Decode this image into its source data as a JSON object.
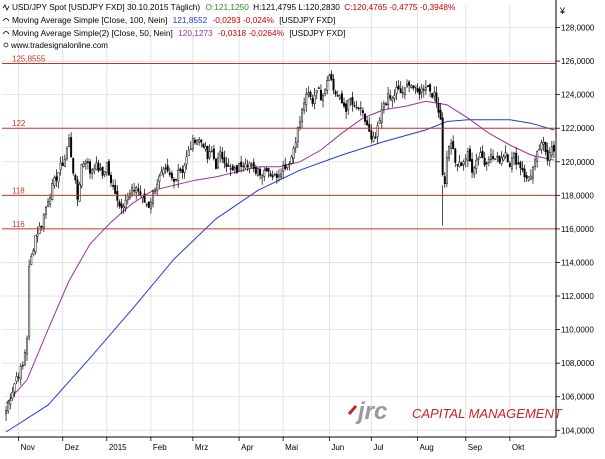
{
  "header": {
    "line1": {
      "main": "USD/JPY Spot [USDJPY FXD]  30.10.2015  Täglich)",
      "o": "O:121,1250",
      "hl": "H:121,4795  L:120,2830",
      "c": "C:120,4765 -0,4775 -0,3948%"
    },
    "line2": {
      "main": "Moving Average Simple [Close, 100, Nein]",
      "value": "121,8552",
      "change": "-0,0293 -0,024%",
      "tail": "[USDJPY FXD]"
    },
    "line3": {
      "main": "Moving Average Simple(2) [Close, 50, Nein]",
      "value": "120,1273",
      "change": "-0,0318 -0,0264%",
      "tail": "[USDJPY FXD]"
    },
    "website": "www.tradesignalonline.com"
  },
  "currency_symbol": "¥",
  "watermark": {
    "logo": "jrc",
    "tagline": "CAPITAL MANAGEMENT"
  },
  "colors": {
    "background": "#ffffff",
    "grid": "#dddddd",
    "axis": "#000000",
    "candle": "#000000",
    "candle_up_fill": "#ffffff",
    "resistance_line": "#c0392b",
    "resistance_label": "#c0392b",
    "ma100": "#1f3fd6",
    "ma50": "#9b2fa0",
    "open_text": "#2e8b2e",
    "change_text": "#d00000",
    "watermark_logo": "#9a9a9a",
    "watermark_accent": "#cc2222",
    "watermark_text": "#cc2222"
  },
  "chart_data": {
    "type": "candlestick",
    "title": "USD/JPY Spot [USDJPY FXD] 30.10.2015 Täglich",
    "ylim": [
      103.6,
      129.4
    ],
    "y_ticks": [
      "104,0000",
      "106,0000",
      "108,0000",
      "110,0000",
      "112,0000",
      "114,0000",
      "116,0000",
      "118,0000",
      "120,0000",
      "122,0000",
      "124,0000",
      "126,0000",
      "128,0000"
    ],
    "x_ticks": [
      {
        "label": "Nov",
        "index": 6
      },
      {
        "label": "Dez",
        "index": 27
      },
      {
        "label": "2015",
        "index": 48
      },
      {
        "label": "Feb",
        "index": 69
      },
      {
        "label": "Mrz",
        "index": 89
      },
      {
        "label": "Apr",
        "index": 111
      },
      {
        "label": "Mai",
        "index": 132
      },
      {
        "label": "Jun",
        "index": 154
      },
      {
        "label": "Jul",
        "index": 174
      },
      {
        "label": "Aug",
        "index": 196
      },
      {
        "label": "Sep",
        "index": 219
      },
      {
        "label": "Okt",
        "index": 240
      }
    ],
    "n_bars": 262,
    "anchors": [
      [
        0,
        105.2
      ],
      [
        3,
        106.4
      ],
      [
        5,
        107.2
      ],
      [
        8,
        107.8
      ],
      [
        10,
        109.6
      ],
      [
        11,
        113.6
      ],
      [
        14,
        115.6
      ],
      [
        17,
        116.3
      ],
      [
        20,
        117.8
      ],
      [
        23,
        118.8
      ],
      [
        25,
        119.4
      ],
      [
        28,
        120.2
      ],
      [
        30,
        121.3
      ],
      [
        32,
        119.5
      ],
      [
        34,
        117.8
      ],
      [
        36,
        119.8
      ],
      [
        38,
        120.2
      ],
      [
        40,
        119.4
      ],
      [
        42,
        119.8
      ],
      [
        44,
        119.6
      ],
      [
        46,
        119.2
      ],
      [
        48,
        119.9
      ],
      [
        50,
        118.6
      ],
      [
        52,
        118.3
      ],
      [
        54,
        117.4
      ],
      [
        56,
        117.6
      ],
      [
        58,
        117.9
      ],
      [
        60,
        118.2
      ],
      [
        62,
        118.5
      ],
      [
        64,
        118.0
      ],
      [
        66,
        117.6
      ],
      [
        68,
        117.4
      ],
      [
        70,
        118.1
      ],
      [
        72,
        118.8
      ],
      [
        74,
        119.2
      ],
      [
        76,
        119.4
      ],
      [
        78,
        119.1
      ],
      [
        80,
        118.8
      ],
      [
        82,
        119.6
      ],
      [
        84,
        119.5
      ],
      [
        86,
        120.2
      ],
      [
        88,
        120.9
      ],
      [
        90,
        121.4
      ],
      [
        92,
        121.3
      ],
      [
        94,
        121.1
      ],
      [
        96,
        120.2
      ],
      [
        98,
        120.6
      ],
      [
        100,
        119.8
      ],
      [
        102,
        120.4
      ],
      [
        104,
        120.2
      ],
      [
        106,
        119.6
      ],
      [
        108,
        119.4
      ],
      [
        110,
        119.5
      ],
      [
        112,
        119.9
      ],
      [
        114,
        120.1
      ],
      [
        116,
        119.9
      ],
      [
        118,
        119.4
      ],
      [
        120,
        119.6
      ],
      [
        122,
        119.3
      ],
      [
        124,
        119.7
      ],
      [
        126,
        119.3
      ],
      [
        128,
        119.1
      ],
      [
        130,
        119.4
      ],
      [
        132,
        119.7
      ],
      [
        134,
        119.9
      ],
      [
        136,
        120.3
      ],
      [
        138,
        121.4
      ],
      [
        140,
        122.4
      ],
      [
        142,
        123.6
      ],
      [
        144,
        124.0
      ],
      [
        146,
        123.6
      ],
      [
        148,
        124.5
      ],
      [
        150,
        123.9
      ],
      [
        152,
        124.5
      ],
      [
        154,
        125.4
      ],
      [
        156,
        124.3
      ],
      [
        158,
        123.9
      ],
      [
        160,
        123.5
      ],
      [
        162,
        123.2
      ],
      [
        164,
        123.7
      ],
      [
        166,
        123.1
      ],
      [
        168,
        123.2
      ],
      [
        170,
        122.7
      ],
      [
        172,
        122.2
      ],
      [
        174,
        121.2
      ],
      [
        176,
        121.4
      ],
      [
        178,
        122.4
      ],
      [
        180,
        123.5
      ],
      [
        182,
        123.8
      ],
      [
        184,
        123.7
      ],
      [
        186,
        124.3
      ],
      [
        188,
        124.1
      ],
      [
        190,
        124.2
      ],
      [
        192,
        124.8
      ],
      [
        194,
        124.4
      ],
      [
        196,
        124.1
      ],
      [
        198,
        124.3
      ],
      [
        200,
        124.6
      ],
      [
        202,
        124.3
      ],
      [
        204,
        123.9
      ],
      [
        206,
        123.2
      ],
      [
        207,
        122.6
      ],
      [
        208,
        119.4
      ],
      [
        209,
        118.6
      ],
      [
        210,
        120.4
      ],
      [
        212,
        121.2
      ],
      [
        214,
        119.9
      ],
      [
        216,
        119.8
      ],
      [
        218,
        120.1
      ],
      [
        220,
        120.4
      ],
      [
        222,
        119.6
      ],
      [
        224,
        120.1
      ],
      [
        226,
        120.6
      ],
      [
        228,
        119.9
      ],
      [
        230,
        120.4
      ],
      [
        232,
        120.2
      ],
      [
        234,
        120.1
      ],
      [
        236,
        120.3
      ],
      [
        238,
        120.6
      ],
      [
        240,
        119.9
      ],
      [
        242,
        120.3
      ],
      [
        244,
        119.9
      ],
      [
        246,
        119.6
      ],
      [
        248,
        118.9
      ],
      [
        250,
        119.3
      ],
      [
        252,
        119.9
      ],
      [
        254,
        120.8
      ],
      [
        256,
        121.0
      ],
      [
        258,
        120.3
      ],
      [
        259,
        120.7
      ],
      [
        260,
        121.1
      ],
      [
        261,
        120.5
      ]
    ],
    "candle_seed": 7,
    "ma100": {
      "name": "Moving Average Simple [Close, 100, Nein]",
      "points": [
        [
          0,
          103.9
        ],
        [
          20,
          105.5
        ],
        [
          40,
          108.3
        ],
        [
          60,
          111.2
        ],
        [
          80,
          114.2
        ],
        [
          100,
          116.6
        ],
        [
          120,
          118.3
        ],
        [
          140,
          119.5
        ],
        [
          160,
          120.4
        ],
        [
          180,
          121.2
        ],
        [
          200,
          121.9
        ],
        [
          210,
          122.4
        ],
        [
          220,
          122.5
        ],
        [
          230,
          122.5
        ],
        [
          240,
          122.5
        ],
        [
          250,
          122.3
        ],
        [
          261,
          121.9
        ]
      ]
    },
    "ma50": {
      "name": "Moving Average Simple(2) [Close, 50, Nein]",
      "points": [
        [
          0,
          105.6
        ],
        [
          10,
          107.0
        ],
        [
          20,
          110.0
        ],
        [
          30,
          112.9
        ],
        [
          40,
          115.1
        ],
        [
          50,
          116.4
        ],
        [
          60,
          117.5
        ],
        [
          70,
          118.3
        ],
        [
          80,
          118.6
        ],
        [
          90,
          118.9
        ],
        [
          100,
          119.1
        ],
        [
          110,
          119.4
        ],
        [
          120,
          119.7
        ],
        [
          130,
          119.7
        ],
        [
          140,
          120.0
        ],
        [
          150,
          120.7
        ],
        [
          160,
          121.7
        ],
        [
          170,
          122.6
        ],
        [
          180,
          123.1
        ],
        [
          190,
          123.3
        ],
        [
          200,
          123.6
        ],
        [
          210,
          123.4
        ],
        [
          220,
          122.6
        ],
        [
          230,
          121.7
        ],
        [
          240,
          121.0
        ],
        [
          250,
          120.4
        ],
        [
          261,
          120.1
        ]
      ]
    },
    "resistance_lines": [
      {
        "label": "125,8555",
        "value": 125.8555
      },
      {
        "label": "122",
        "value": 122
      },
      {
        "label": "118",
        "value": 118
      },
      {
        "label": "116",
        "value": 116
      }
    ]
  }
}
